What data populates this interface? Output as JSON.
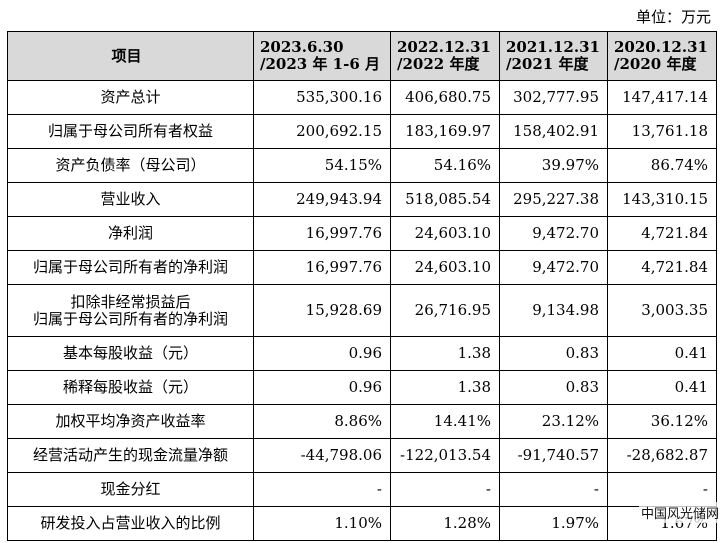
{
  "unit": "单位：万元",
  "headers": {
    "item": "项目",
    "cols": [
      {
        "line1": "2023.6.30",
        "line2": "/2023 年 1-6 月"
      },
      {
        "line1": "2022.12.31",
        "line2": "/2022 年度"
      },
      {
        "line1": "2021.12.31",
        "line2": "/2021 年度"
      },
      {
        "line1": "2020.12.31",
        "line2": "/2020 年度"
      }
    ]
  },
  "rows": [
    {
      "label": "资产总计",
      "values": [
        "535,300.16",
        "406,680.75",
        "302,777.95",
        "147,417.14"
      ]
    },
    {
      "label": "归属于母公司所有者权益",
      "values": [
        "200,692.15",
        "183,169.97",
        "158,402.91",
        "13,761.18"
      ]
    },
    {
      "label": "资产负债率（母公司）",
      "values": [
        "54.15%",
        "54.16%",
        "39.97%",
        "86.74%"
      ]
    },
    {
      "label": "营业收入",
      "values": [
        "249,943.94",
        "518,085.54",
        "295,227.38",
        "143,310.15"
      ]
    },
    {
      "label": "净利润",
      "values": [
        "16,997.76",
        "24,603.10",
        "9,472.70",
        "4,721.84"
      ]
    },
    {
      "label": "归属于母公司所有者的净利润",
      "values": [
        "16,997.76",
        "24,603.10",
        "9,472.70",
        "4,721.84"
      ]
    },
    {
      "label_line1": "扣除非经常损益后",
      "label_line2": "归属于母公司所有者的净利润",
      "values": [
        "15,928.69",
        "26,716.95",
        "9,134.98",
        "3,003.35"
      ]
    },
    {
      "label": "基本每股收益（元）",
      "values": [
        "0.96",
        "1.38",
        "0.83",
        "0.41"
      ]
    },
    {
      "label": "稀释每股收益（元）",
      "values": [
        "0.96",
        "1.38",
        "0.83",
        "0.41"
      ]
    },
    {
      "label": "加权平均净资产收益率",
      "values": [
        "8.86%",
        "14.41%",
        "23.12%",
        "36.12%"
      ]
    },
    {
      "label": "经营活动产生的现金流量净额",
      "values": [
        "-44,798.06",
        "-122,013.54",
        "-91,740.57",
        "-28,682.87"
      ]
    },
    {
      "label": "现金分红",
      "values": [
        "-",
        "-",
        "-",
        "-"
      ]
    },
    {
      "label": "研发投入占营业收入的比例",
      "values": [
        "1.10%",
        "1.28%",
        "1.97%",
        "1.67%"
      ]
    }
  ],
  "watermark": "中国风光储网"
}
